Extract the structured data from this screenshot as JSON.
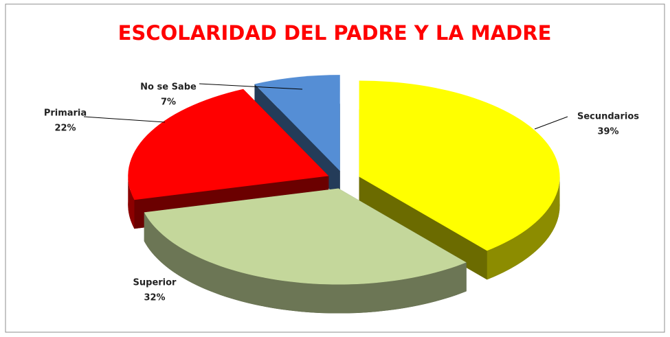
{
  "chart_data": {
    "type": "pie",
    "title": "ESCOLARIDAD DEL PADRE Y LA MADRE",
    "categories": [
      "Secundarios",
      "Superior",
      "Primaria",
      "No se Sabe"
    ],
    "values": [
      39,
      32,
      22,
      7
    ],
    "value_labels": [
      "39%",
      "32%",
      "22%",
      "7%"
    ],
    "colors": [
      "#ffff00",
      "#c4d79b",
      "#ff0000",
      "#558ed5"
    ]
  }
}
